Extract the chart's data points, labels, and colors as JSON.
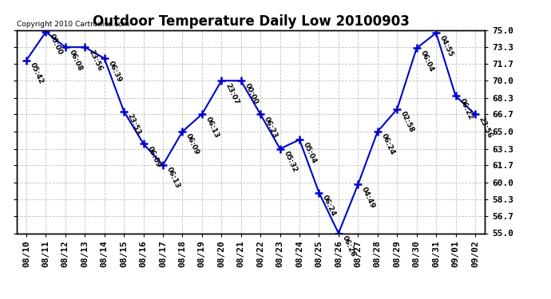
{
  "title": "Outdoor Temperature Daily Low 20100903",
  "copyright": "Copyright 2010 Cartronics.com",
  "dates": [
    "08/10",
    "08/11",
    "08/12",
    "08/13",
    "08/14",
    "08/15",
    "08/16",
    "08/17",
    "08/18",
    "08/19",
    "08/20",
    "08/21",
    "08/22",
    "08/23",
    "08/24",
    "08/25",
    "08/26",
    "08/27",
    "08/28",
    "08/29",
    "08/30",
    "08/31",
    "09/01",
    "09/02"
  ],
  "values": [
    72.0,
    74.8,
    73.3,
    73.3,
    72.2,
    67.0,
    63.8,
    61.7,
    65.0,
    66.7,
    70.0,
    70.0,
    66.7,
    63.3,
    64.2,
    59.0,
    55.0,
    59.8,
    65.0,
    67.2,
    73.2,
    74.7,
    68.5,
    66.7
  ],
  "time_labels": [
    "05:42",
    "00:00",
    "06:08",
    "23:56",
    "06:39",
    "23:53",
    "06:09",
    "06:13",
    "06:09",
    "06:13",
    "23:07",
    "00:00",
    "06:23",
    "05:32",
    "05:04",
    "06:24",
    "06:26",
    "04:49",
    "06:24",
    "02:58",
    "06:04",
    "04:55",
    "06:22",
    "23:56"
  ],
  "ylim": [
    55.0,
    75.0
  ],
  "yticks": [
    55.0,
    56.7,
    58.3,
    60.0,
    61.7,
    63.3,
    65.0,
    66.7,
    68.3,
    70.0,
    71.7,
    73.3,
    75.0
  ],
  "line_color": "#0000cc",
  "marker_color": "#0000cc",
  "background_color": "#ffffff",
  "grid_color": "#c0c0c0",
  "title_fontsize": 12,
  "tick_fontsize": 8,
  "annotation_fontsize": 6.5,
  "annotation_rotation": -65
}
